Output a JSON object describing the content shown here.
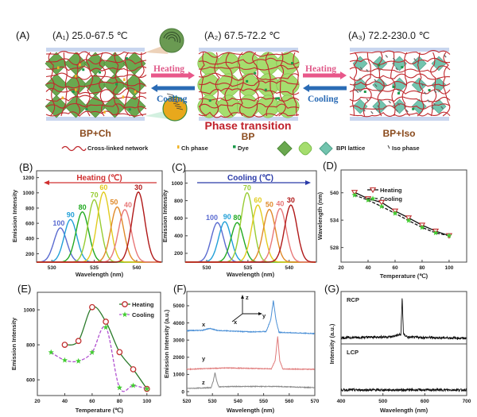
{
  "panel_a": {
    "label": "(A)",
    "states": [
      {
        "title": "(A₁) 25.0-67.5 ℃",
        "phase": "BP+Ch"
      },
      {
        "title": "(A₂) 67.5-72.2 ℃",
        "phase": "BP"
      },
      {
        "title": "(A₃) 72.2-230.0 ℃",
        "phase": "BP+Iso"
      }
    ],
    "heating_label": "Heating",
    "cooling_label": "Cooling",
    "transition_label": "Phase transition",
    "legend": {
      "network": "Cross-linked network",
      "ch_phase": "Ch phase",
      "dye": "Dye",
      "bpi_lattice": "BPI lattice",
      "iso_phase": "Iso phase"
    },
    "colors": {
      "network": "#c0282d",
      "heating": "#e8578a",
      "cooling": "#2a6bb5",
      "transition": "#c0202a",
      "glass": "#c9d6ef",
      "bp_ch": "#6aa84f",
      "bp": "#a5dd6e",
      "bp_iso": "#72c4ae",
      "ch": "#f0b428",
      "dye": "#1a9a4a"
    }
  },
  "chart_data": [
    {
      "panel": "(B)",
      "type": "line",
      "annotation": "Heating (℃)",
      "annotation_color": "#d03030",
      "xlabel": "Wavelength (nm)",
      "ylabel": "Emission Intensity",
      "xlim": [
        528.2,
        543
      ],
      "ylim": [
        90,
        1290
      ],
      "xticks": [
        530,
        535,
        540
      ],
      "yticks": [
        200,
        400,
        600,
        800,
        1000,
        1200
      ],
      "series": [
        {
          "name": "100",
          "peak_nm": 531.0,
          "peak_intensity": 540,
          "color": "#5a6bd0"
        },
        {
          "name": "90",
          "peak_nm": 532.2,
          "peak_intensity": 650,
          "color": "#22a0d8"
        },
        {
          "name": "80",
          "peak_nm": 533.6,
          "peak_intensity": 750,
          "color": "#22aa22"
        },
        {
          "name": "70",
          "peak_nm": 535.0,
          "peak_intensity": 910,
          "color": "#98cc33"
        },
        {
          "name": "60",
          "peak_nm": 536.1,
          "peak_intensity": 1010,
          "color": "#e2cc20"
        },
        {
          "name": "50",
          "peak_nm": 537.7,
          "peak_intensity": 815,
          "color": "#e08a2a"
        },
        {
          "name": "40",
          "peak_nm": 538.6,
          "peak_intensity": 780,
          "color": "#e87878"
        },
        {
          "name": "30",
          "peak_nm": 540.2,
          "peak_intensity": 1010,
          "color": "#b01818"
        }
      ]
    },
    {
      "panel": "(C)",
      "type": "line",
      "annotation": "Cooling (℃)",
      "annotation_color": "#2a3aa8",
      "xlabel": "Wavelength (nm)",
      "ylabel": "Emission Intensity",
      "xlim": [
        527.4,
        543.3
      ],
      "ylim": [
        100,
        1140
      ],
      "xticks": [
        530,
        535,
        540
      ],
      "yticks": [
        200,
        400,
        600,
        800,
        1000
      ],
      "series": [
        {
          "name": "100",
          "peak_nm": 531.3,
          "peak_intensity": 550,
          "color": "#5a6bd0"
        },
        {
          "name": "90",
          "peak_nm": 532.2,
          "peak_intensity": 560,
          "color": "#22a0d8"
        },
        {
          "name": "80",
          "peak_nm": 533.7,
          "peak_intensity": 550,
          "color": "#22aa22"
        },
        {
          "name": "70",
          "peak_nm": 534.9,
          "peak_intensity": 890,
          "color": "#98cc33"
        },
        {
          "name": "60",
          "peak_nm": 536.2,
          "peak_intensity": 750,
          "color": "#e2cc20"
        },
        {
          "name": "50",
          "peak_nm": 537.6,
          "peak_intensity": 700,
          "color": "#e08a2a"
        },
        {
          "name": "40",
          "peak_nm": 538.9,
          "peak_intensity": 710,
          "color": "#e87878"
        },
        {
          "name": "30",
          "peak_nm": 540.2,
          "peak_intensity": 750,
          "color": "#b01818"
        }
      ]
    },
    {
      "panel": "(D)",
      "type": "line",
      "xlabel": "Temperature (℃)",
      "ylabel": "Wavelength (nm)",
      "xlim": [
        20,
        113
      ],
      "ylim": [
        524.8,
        545
      ],
      "xticks": [
        20,
        40,
        60,
        80,
        100
      ],
      "yticks": [
        528,
        534,
        540
      ],
      "legend": "top-right",
      "series": [
        {
          "name": "Heating",
          "x": [
            30,
            40,
            50,
            60,
            70,
            80,
            90,
            100
          ],
          "y": [
            540.1,
            538.7,
            537.9,
            536.0,
            534.5,
            532.9,
            531.6,
            530.6
          ],
          "color": "#c03030",
          "line": "#111111",
          "marker": "triangle-down-open",
          "dashed": false
        },
        {
          "name": "Cooling",
          "x": [
            30,
            40,
            50,
            60,
            70,
            80,
            90,
            100
          ],
          "y": [
            539.5,
            538.4,
            537.0,
            535.5,
            533.9,
            532.4,
            531.2,
            530.6
          ],
          "color": "#44cc33",
          "line": "#111111",
          "marker": "star",
          "dashed": true
        }
      ]
    },
    {
      "panel": "(E)",
      "type": "line",
      "xlabel": "Temperature (℃)",
      "ylabel": "Emission Intensity",
      "xlim": [
        20,
        110
      ],
      "ylim": [
        510,
        1100
      ],
      "xticks": [
        20,
        40,
        60,
        80,
        100
      ],
      "yticks": [
        600,
        800,
        1000
      ],
      "legend": "top-right",
      "series": [
        {
          "name": "Heating",
          "x": [
            40,
            50,
            60,
            70,
            80,
            90,
            100
          ],
          "y": [
            800,
            822,
            1015,
            932,
            758,
            660,
            548
          ],
          "color": "#c03030",
          "line": "#2a7a2a",
          "marker": "circle-open",
          "dashed": false
        },
        {
          "name": "Cooling",
          "x": [
            30,
            40,
            50,
            60,
            70,
            80,
            90,
            100
          ],
          "y": [
            757,
            712,
            707,
            757,
            900,
            555,
            567,
            548
          ],
          "color": "#44cc33",
          "line": "#b050d0",
          "marker": "star",
          "dashed": true
        }
      ]
    },
    {
      "panel": "(F)",
      "type": "line",
      "xlabel": "Wavelength (nm)",
      "ylabel": "Emission Intensity (a.u.)",
      "xlim": [
        520,
        570
      ],
      "ylim": [
        -230,
        5830
      ],
      "xticks": [
        520,
        530,
        540,
        550,
        560,
        570
      ],
      "yticks": [
        0,
        1000,
        2000,
        3000,
        4000,
        5000
      ],
      "axes_glyph": {
        "z": "z",
        "y": "y",
        "x": "x"
      },
      "series": [
        {
          "name": "x",
          "color": "#4a8fd6",
          "points": [
            [
              520,
              3550
            ],
            [
              526,
              3570
            ],
            [
              529,
              3680
            ],
            [
              532,
              3560
            ],
            [
              545,
              3480
            ],
            [
              551,
              3500
            ],
            [
              552.8,
              4200
            ],
            [
              553.8,
              5300
            ],
            [
              554.8,
              4200
            ],
            [
              556,
              3450
            ],
            [
              570,
              3380
            ]
          ]
        },
        {
          "name": "y",
          "color": "#e07a7a",
          "points": [
            [
              520,
              1300
            ],
            [
              535,
              1380
            ],
            [
              553,
              1330
            ],
            [
              554.5,
              1800
            ],
            [
              555.5,
              3200
            ],
            [
              556.3,
              1800
            ],
            [
              557.5,
              1320
            ],
            [
              570,
              1300
            ]
          ]
        },
        {
          "name": "z",
          "color": "#888888",
          "points": [
            [
              520,
              180
            ],
            [
              529.5,
              230
            ],
            [
              530.3,
              600
            ],
            [
              531,
              1100
            ],
            [
              531.7,
              600
            ],
            [
              532.5,
              280
            ],
            [
              540,
              300
            ],
            [
              555,
              300
            ],
            [
              570,
              230
            ]
          ]
        }
      ]
    },
    {
      "panel": "(G)",
      "type": "line",
      "xlabel": "Wavelength (nm)",
      "ylabel": "Intensity (a.u.)",
      "xlim": [
        400,
        700
      ],
      "xticks": [
        400,
        500,
        600,
        700
      ],
      "series": [
        {
          "name": "RCP",
          "color": "#111111",
          "points": [
            [
              400,
              0.13
            ],
            [
              520,
              0.15
            ],
            [
              543,
              0.2
            ],
            [
              546,
              1.0
            ],
            [
              549,
              0.2
            ],
            [
              560,
              0.14
            ],
            [
              700,
              0.12
            ]
          ]
        },
        {
          "name": "LCP",
          "color": "#111111",
          "points": [
            [
              400,
              0.12
            ],
            [
              700,
              0.12
            ]
          ]
        }
      ]
    }
  ]
}
